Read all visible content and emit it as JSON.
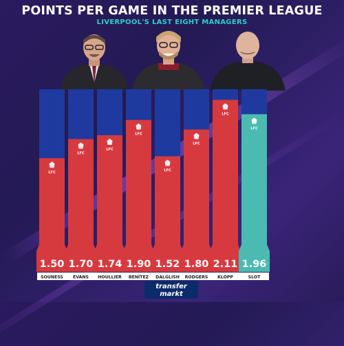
{
  "header": {
    "title": "POINTS PER GAME IN THE PREMIER LEAGUE",
    "subtitle": "LIVERPOOL'S LAST EIGHT MANAGERS"
  },
  "brand": {
    "logo_line1": "transfer",
    "logo_line2": "markt"
  },
  "colors": {
    "bar_red": "#d63a3f",
    "bar_teal": "#4bbab0",
    "bar_top": "#1e3a9e",
    "label_bg": "#ffffff"
  },
  "chart_data": {
    "type": "bar",
    "title": "POINTS PER GAME IN THE PREMIER LEAGUE",
    "subtitle": "LIVERPOOL'S LAST EIGHT MANAGERS",
    "categories": [
      "SOUNESS",
      "EVANS",
      "HOULLIER",
      "BENÍTEZ",
      "DALGLISH",
      "RODGERS",
      "KLOPP",
      "SLOT"
    ],
    "values": [
      1.5,
      1.7,
      1.74,
      1.9,
      1.52,
      1.8,
      2.11,
      1.96
    ],
    "value_labels": [
      "1.50",
      "1.70",
      "1.74",
      "1.90",
      "1.52",
      "1.80",
      "2.11",
      "1.96"
    ],
    "highlight": "SLOT",
    "ylim": [
      0,
      2.2
    ],
    "grid": false,
    "badge": "LFC"
  }
}
